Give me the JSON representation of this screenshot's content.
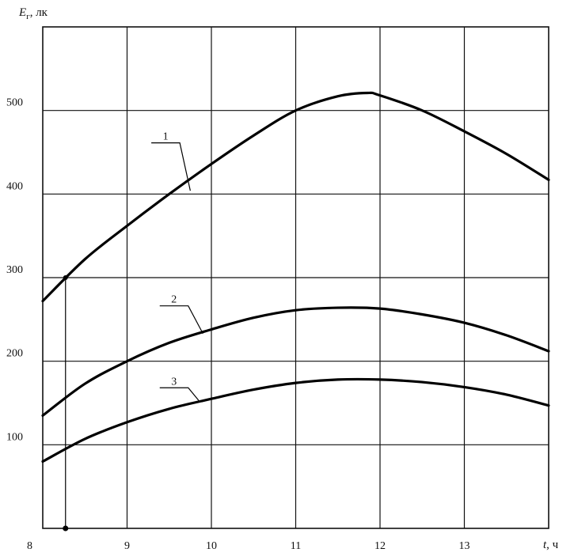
{
  "chart_data": {
    "type": "line",
    "ylabel_main": "E",
    "ylabel_sub": "г",
    "ylabel_unit": ", лк",
    "xlabel_main": "t",
    "xlabel_unit": ", ч",
    "xlim": [
      8,
      14
    ],
    "ylim": [
      0,
      600
    ],
    "x_ticks": [
      8,
      9,
      10,
      11,
      12,
      13
    ],
    "y_ticks": [
      100,
      200,
      300,
      400,
      500
    ],
    "grid": true,
    "series": [
      {
        "name": "1",
        "label_at": [
          9.4,
          465
        ],
        "leader_to": [
          9.75,
          404
        ],
        "x": [
          8.0,
          8.5,
          9.0,
          9.5,
          10.0,
          10.5,
          11.0,
          11.5,
          11.85,
          12.0,
          12.5,
          13.0,
          13.5,
          14.0
        ],
        "y": [
          272,
          322,
          362,
          400,
          436,
          470,
          500,
          517,
          521,
          518,
          500,
          475,
          448,
          417
        ]
      },
      {
        "name": "2",
        "label_at": [
          9.5,
          270
        ],
        "leader_to": [
          9.9,
          233
        ],
        "x": [
          8.0,
          8.5,
          9.0,
          9.5,
          10.0,
          10.5,
          11.0,
          11.5,
          12.0,
          12.5,
          13.0,
          13.5,
          14.0
        ],
        "y": [
          135,
          173,
          200,
          222,
          238,
          252,
          261,
          264,
          263,
          256,
          246,
          231,
          212
        ]
      },
      {
        "name": "3",
        "label_at": [
          9.5,
          172
        ],
        "leader_to": [
          9.85,
          153
        ],
        "x": [
          8.0,
          8.5,
          9.0,
          9.5,
          10.0,
          10.5,
          11.0,
          11.5,
          12.0,
          12.5,
          13.0,
          13.5,
          14.0
        ],
        "y": [
          80,
          107,
          127,
          143,
          155,
          166,
          174,
          178,
          178,
          175,
          169,
          160,
          147
        ]
      }
    ],
    "reference_line": {
      "x": 8.27,
      "y_top": 300
    }
  }
}
